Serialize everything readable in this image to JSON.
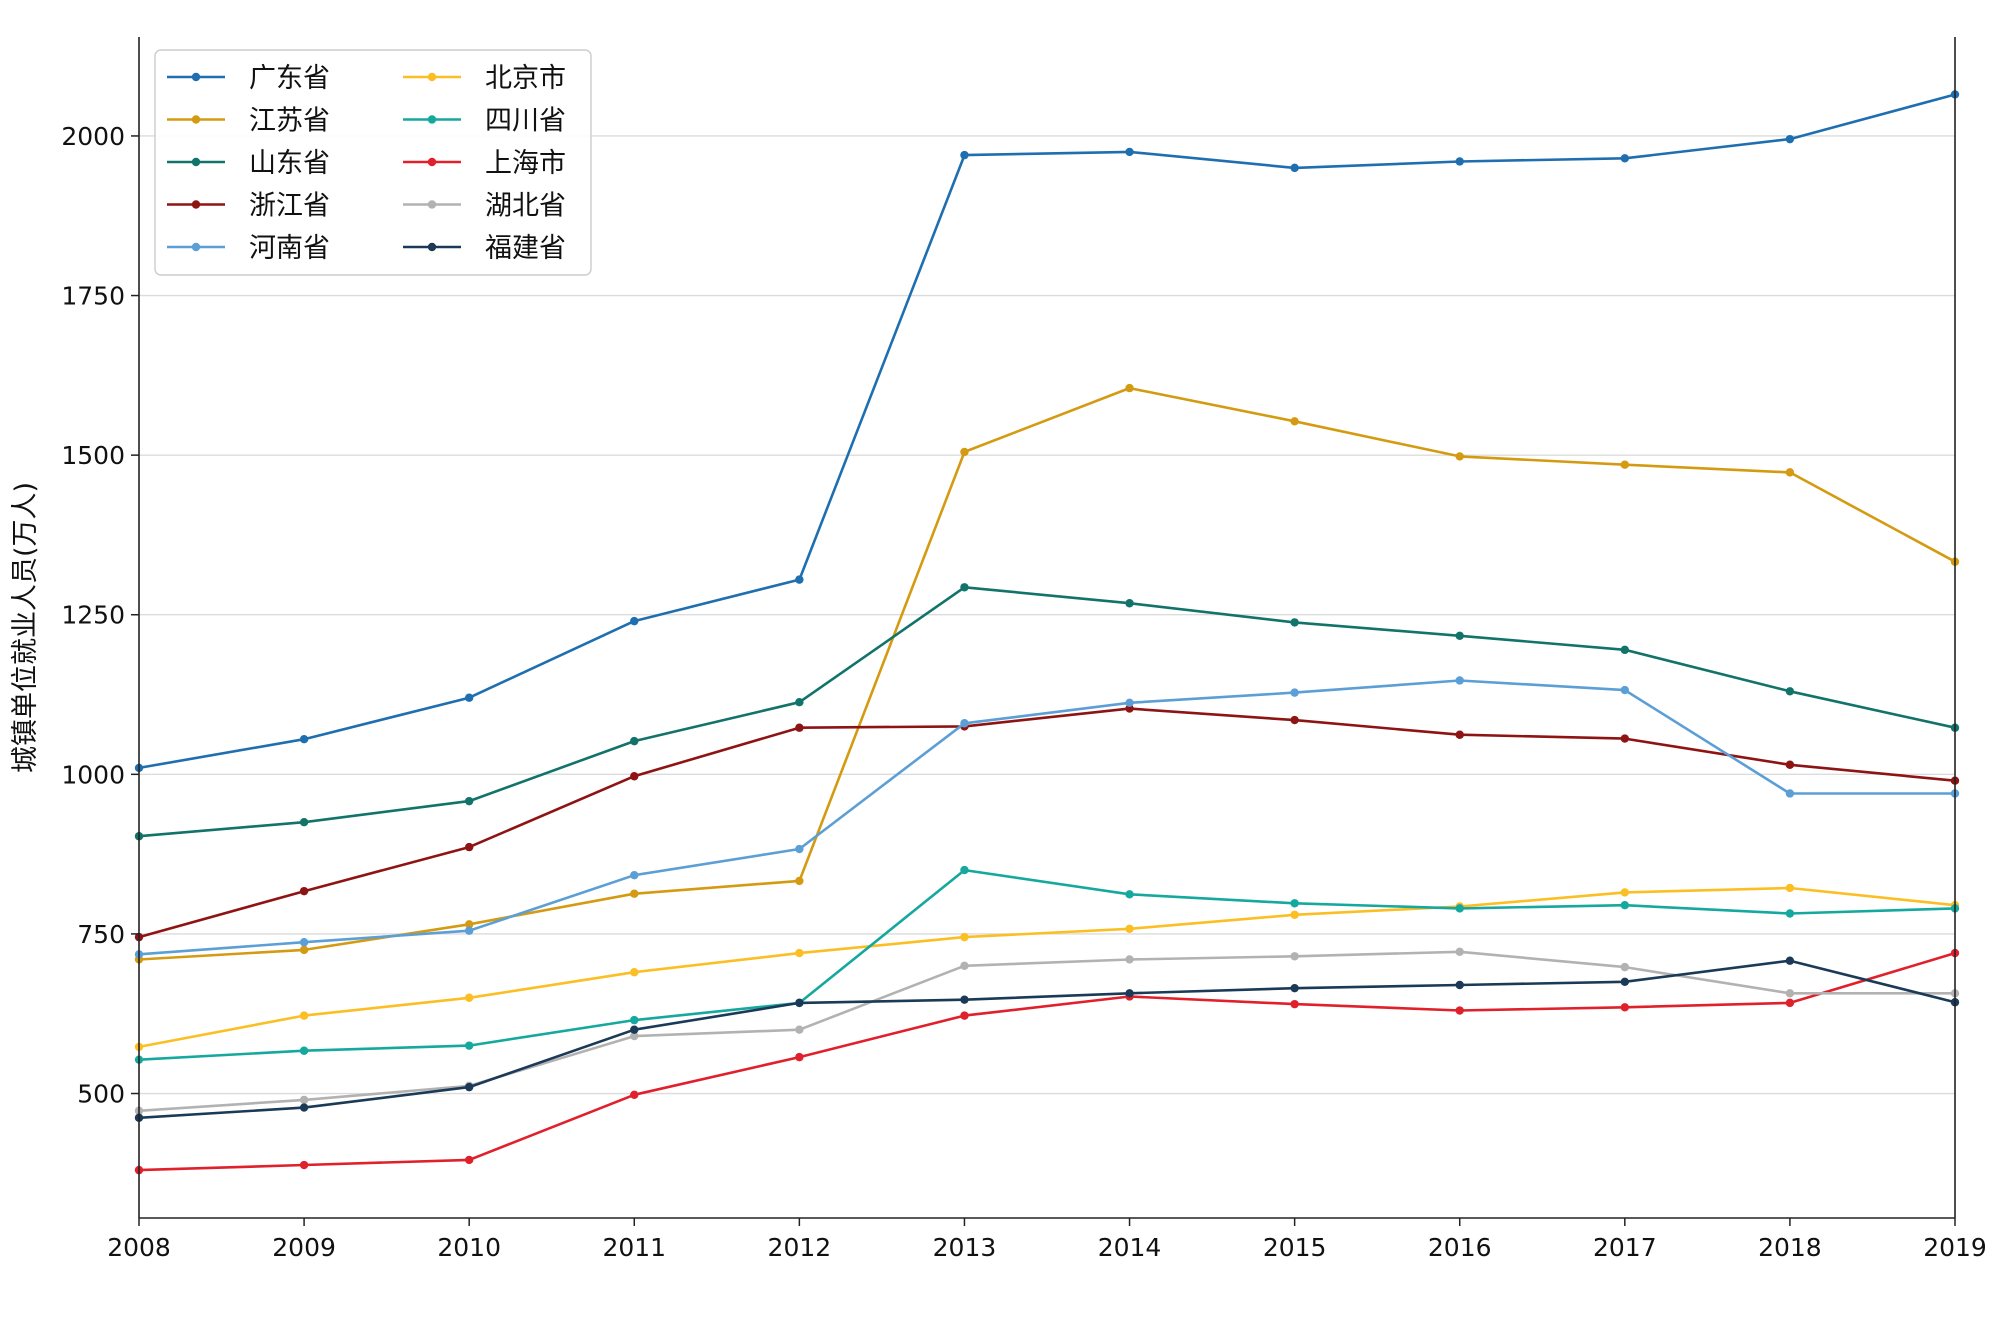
{
  "chart_data": {
    "type": "line",
    "title": "",
    "xlabel": "",
    "ylabel": "城镇单位就业人员(万人)",
    "x": [
      2008,
      2009,
      2010,
      2011,
      2012,
      2013,
      2014,
      2015,
      2016,
      2017,
      2018,
      2019
    ],
    "xlim": [
      2008,
      2019
    ],
    "ylim": [
      305,
      2155
    ],
    "yticks": [
      500,
      750,
      1000,
      1250,
      1500,
      1750,
      2000
    ],
    "grid": "horizontal",
    "legend": {
      "placement": "top-left",
      "columns": 2
    },
    "series": [
      {
        "name": "广东省",
        "color": "#1f6fb0",
        "values": [
          1010,
          1055,
          1120,
          1240,
          1305,
          1970,
          1975,
          1950,
          1960,
          1965,
          1995,
          2065
        ]
      },
      {
        "name": "江苏省",
        "color": "#d49b12",
        "values": [
          710,
          725,
          765,
          813,
          833,
          1505,
          1605,
          1553,
          1498,
          1485,
          1473,
          1333
        ]
      },
      {
        "name": "山东省",
        "color": "#12736a",
        "values": [
          903,
          925,
          958,
          1052,
          1113,
          1293,
          1268,
          1238,
          1217,
          1195,
          1130,
          1073
        ]
      },
      {
        "name": "浙江省",
        "color": "#8e1414",
        "values": [
          745,
          817,
          886,
          997,
          1073,
          1075,
          1103,
          1085,
          1062,
          1056,
          1015,
          990
        ]
      },
      {
        "name": "河南省",
        "color": "#5b9fd6",
        "values": [
          718,
          737,
          755,
          842,
          883,
          1080,
          1112,
          1128,
          1147,
          1132,
          970,
          970
        ]
      },
      {
        "name": "北京市",
        "color": "#fbbf24",
        "values": [
          573,
          622,
          650,
          690,
          720,
          745,
          758,
          780,
          793,
          815,
          822,
          795
        ]
      },
      {
        "name": "四川省",
        "color": "#15a89e",
        "values": [
          553,
          567,
          575,
          615,
          642,
          850,
          812,
          798,
          790,
          795,
          782,
          790
        ]
      },
      {
        "name": "上海市",
        "color": "#e0202b",
        "values": [
          380,
          388,
          396,
          498,
          557,
          622,
          652,
          640,
          630,
          635,
          642,
          720
        ]
      },
      {
        "name": "湖北省",
        "color": "#b2b2b2",
        "values": [
          473,
          490,
          512,
          590,
          600,
          700,
          710,
          715,
          722,
          698,
          657,
          657
        ]
      },
      {
        "name": "福建省",
        "color": "#1b3a57",
        "values": [
          462,
          478,
          510,
          600,
          642,
          647,
          657,
          665,
          670,
          675,
          708,
          643
        ]
      }
    ]
  }
}
